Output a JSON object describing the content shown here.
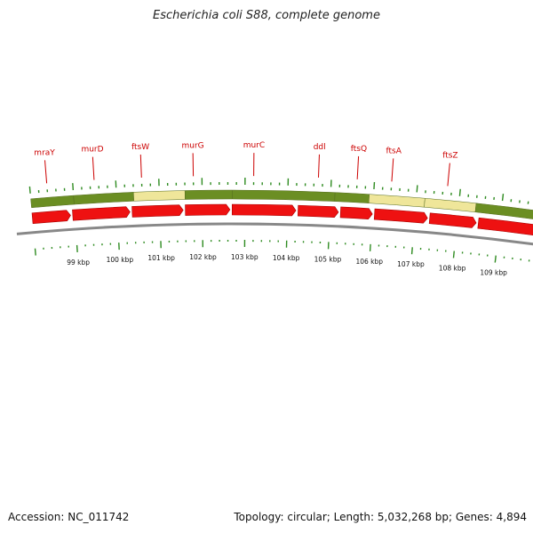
{
  "title": "Escherichia coli S88, complete genome",
  "footer": {
    "accession": "Accession: NC_011742",
    "summary": "Topology: circular; Length: 5,032,268 bp; Genes: 4,894"
  },
  "colors": {
    "gene_label": "#cc0000",
    "cds_arrow": "#ee1111",
    "band_green": "#6b8e23",
    "band_yellow": "#efe69a",
    "tick": "#2e8b20",
    "backbone": "#888888"
  },
  "gene_labels": [
    "mraY",
    "murD",
    "ftsW",
    "murG",
    "murC",
    "ddl",
    "ftsQ",
    "ftsA",
    "ftsZ"
  ],
  "bands": [
    {
      "start_kbp": 98.0,
      "end_kbp": 99.0,
      "color": "green"
    },
    {
      "start_kbp": 99.0,
      "end_kbp": 100.4,
      "color": "green"
    },
    {
      "start_kbp": 100.4,
      "end_kbp": 101.6,
      "color": "yellow"
    },
    {
      "start_kbp": 101.6,
      "end_kbp": 102.7,
      "color": "green"
    },
    {
      "start_kbp": 102.7,
      "end_kbp": 105.1,
      "color": "green"
    },
    {
      "start_kbp": 105.1,
      "end_kbp": 105.9,
      "color": "green"
    },
    {
      "start_kbp": 105.9,
      "end_kbp": 107.2,
      "color": "yellow"
    },
    {
      "start_kbp": 107.2,
      "end_kbp": 108.4,
      "color": "yellow"
    },
    {
      "start_kbp": 108.4,
      "end_kbp": 110.0,
      "color": "green"
    }
  ],
  "cds_arrows": [
    {
      "start_kbp": 98.0,
      "end_kbp": 98.9
    },
    {
      "start_kbp": 98.95,
      "end_kbp": 100.3
    },
    {
      "start_kbp": 100.35,
      "end_kbp": 101.55
    },
    {
      "start_kbp": 101.6,
      "end_kbp": 102.65
    },
    {
      "start_kbp": 102.7,
      "end_kbp": 104.2
    },
    {
      "start_kbp": 104.25,
      "end_kbp": 105.2
    },
    {
      "start_kbp": 105.25,
      "end_kbp": 106.0
    },
    {
      "start_kbp": 106.05,
      "end_kbp": 107.3
    },
    {
      "start_kbp": 107.35,
      "end_kbp": 108.45
    },
    {
      "start_kbp": 108.5,
      "end_kbp": 110.0
    }
  ],
  "gene_label_positions_kbp": [
    98.4,
    99.5,
    100.6,
    101.8,
    103.2,
    104.7,
    105.6,
    106.4,
    107.7
  ],
  "scale": {
    "labels": [
      "99 kbp",
      "100 kbp",
      "101 kbp",
      "102 kbp",
      "103 kbp",
      "104 kbp",
      "105 kbp",
      "106 kbp",
      "107 kbp",
      "108 kbp",
      "109 kbp"
    ],
    "major_kbp": [
      99,
      100,
      101,
      102,
      103,
      104,
      105,
      106,
      107,
      108,
      109
    ]
  }
}
